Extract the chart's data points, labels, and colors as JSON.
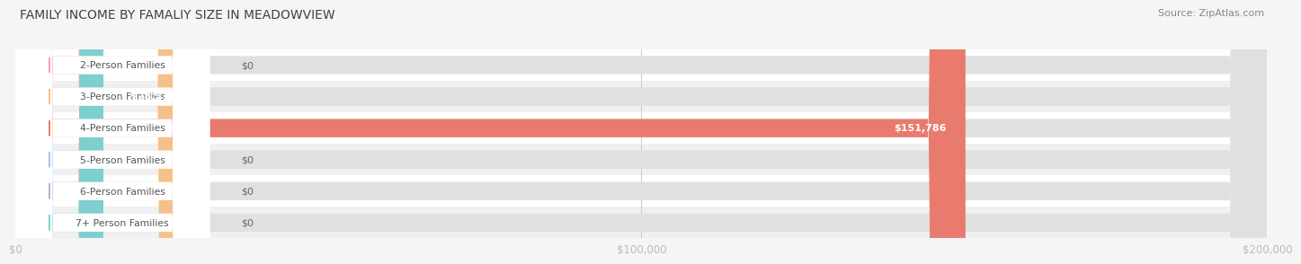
{
  "title": "FAMILY INCOME BY FAMALIY SIZE IN MEADOWVIEW",
  "source": "Source: ZipAtlas.com",
  "categories": [
    "2-Person Families",
    "3-Person Families",
    "4-Person Families",
    "5-Person Families",
    "6-Person Families",
    "7+ Person Families"
  ],
  "values": [
    0,
    28571,
    151786,
    0,
    0,
    0
  ],
  "bar_colors": [
    "#f4a0b8",
    "#f5c08a",
    "#e87b6e",
    "#a8c4e0",
    "#c4a8d4",
    "#7ecfcf"
  ],
  "value_labels": [
    "$0",
    "$28,571",
    "$151,786",
    "$0",
    "$0",
    "$0"
  ],
  "xmax": 200000,
  "xtick_labels": [
    "$0",
    "$100,000",
    "$200,000"
  ],
  "bg_color": "#f5f5f5",
  "bar_bg_color": "#e0e0e0",
  "row_even_color": "#ffffff",
  "row_odd_color": "#f0f0f0",
  "grid_color": "#cccccc",
  "title_color": "#404040",
  "source_color": "#888888",
  "label_text_color": "#555555",
  "value_text_color": "#666666"
}
